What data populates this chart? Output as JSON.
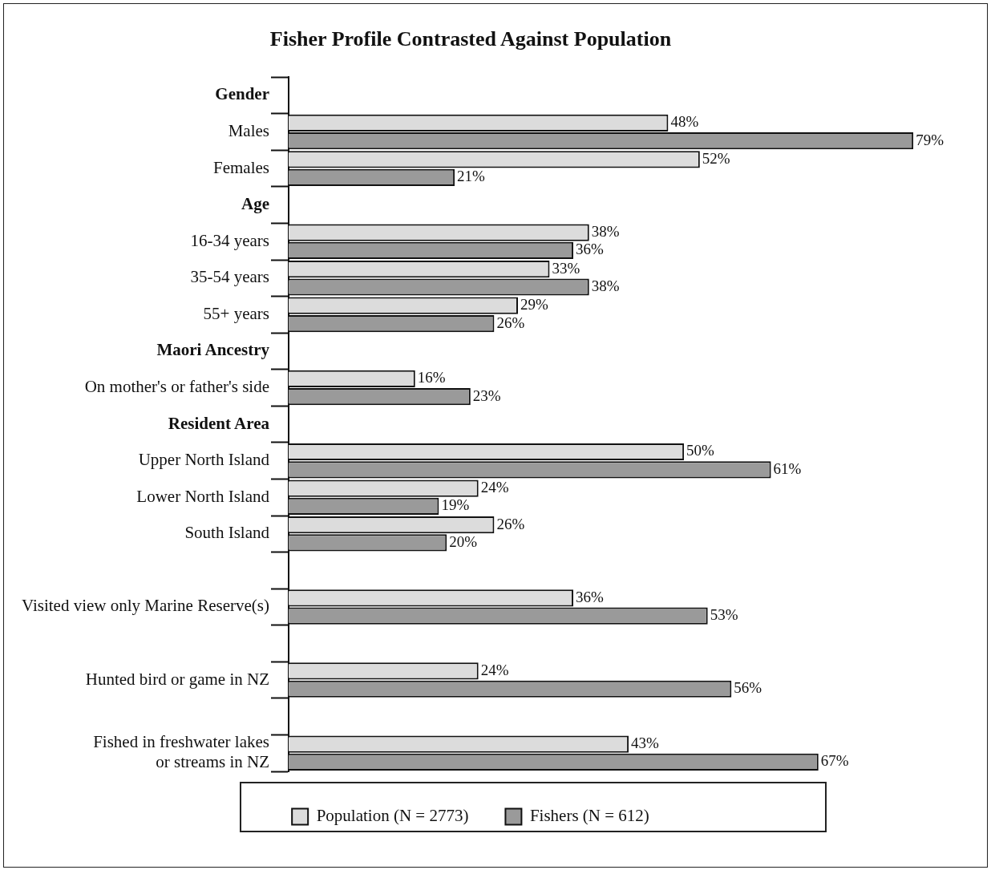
{
  "chart_data": {
    "type": "bar",
    "orientation": "horizontal",
    "title": "Fisher Profile Contrasted Against Population",
    "categories": [
      "Gender",
      "Males",
      "Females",
      "Age",
      "16-34 years",
      "35-54 years",
      "55+ years",
      "Maori Ancestry",
      "On mother's or father's side",
      "Resident Area",
      "Upper North Island",
      "Lower North Island",
      "South Island",
      null,
      "Visited view only Marine Reserve(s)",
      null,
      "Hunted bird or game in NZ",
      null,
      "Fished in freshwater lakes\nor streams in NZ"
    ],
    "series": [
      {
        "name": "Population (N = 2773)",
        "color": "#dcdcdc",
        "values": [
          null,
          48,
          52,
          null,
          38,
          33,
          29,
          null,
          16,
          null,
          50,
          24,
          26,
          null,
          36,
          null,
          24,
          null,
          43
        ],
        "value_labels": [
          null,
          "48%",
          "52%",
          null,
          "38%",
          "33%",
          "29%",
          null,
          "16%",
          null,
          "50%",
          "24%",
          "26%",
          null,
          "36%",
          null,
          "24%",
          null,
          "43%"
        ]
      },
      {
        "name": "Fishers (N = 612)",
        "color": "#9a9a9a",
        "values": [
          null,
          79,
          21,
          null,
          36,
          38,
          26,
          null,
          23,
          null,
          61,
          19,
          20,
          null,
          53,
          null,
          56,
          null,
          67
        ],
        "value_labels": [
          null,
          "79%",
          "21%",
          null,
          "36%",
          "38%",
          "26%",
          null,
          "23%",
          null,
          "61%",
          "19%",
          "20%",
          null,
          "53%",
          null,
          "56%",
          null,
          "67%"
        ]
      }
    ],
    "tick_labels": "y",
    "legend": "bottom"
  }
}
